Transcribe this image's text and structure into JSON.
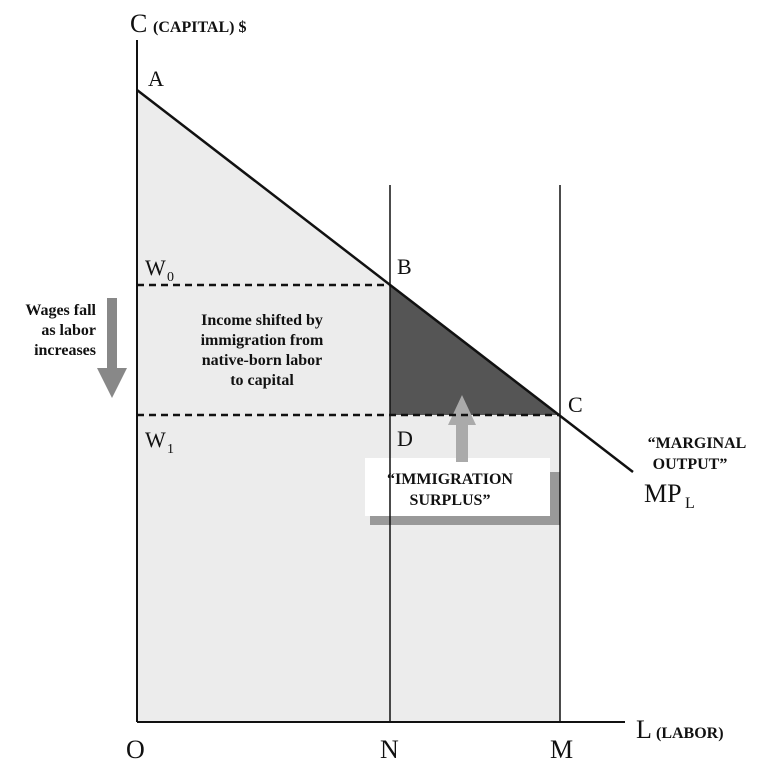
{
  "axes": {
    "y_letter": "C",
    "y_label": "(CAPITAL) $",
    "x_letter": "L",
    "x_label": "(LABOR)"
  },
  "points": {
    "origin": "O",
    "a": "A",
    "b": "B",
    "c": "C",
    "d": "D",
    "n": "N",
    "m": "M"
  },
  "wages": {
    "w0": "W",
    "w0_sub": "0",
    "w1": "W",
    "w1_sub": "1"
  },
  "curve": {
    "label_lines": [
      "“MARGINAL",
      "OUTPUT”"
    ],
    "name": "MP",
    "name_sub": "L"
  },
  "notes": {
    "wages_fall": [
      "Wages fall",
      "as labor",
      "increases"
    ],
    "income_shifted": [
      "Income shifted by",
      "immigration from",
      "native-born labor",
      "to capital"
    ],
    "surplus": [
      "“IMMIGRATION",
      "SURPLUS”"
    ]
  }
}
